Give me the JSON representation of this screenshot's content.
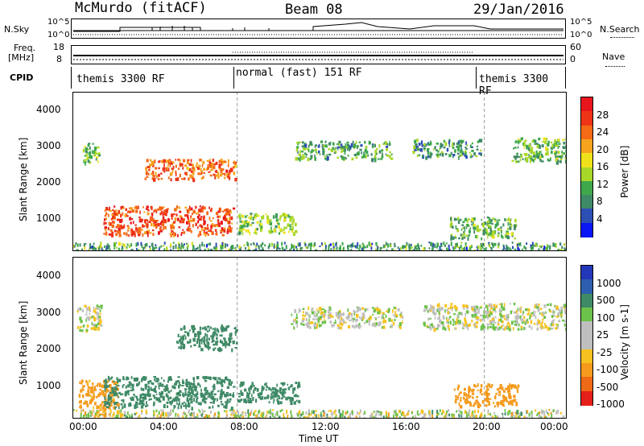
{
  "header": {
    "station": "McMurdo (fitACF)",
    "beam": "Beam 08",
    "date": "29/Jan/2016"
  },
  "strip_labels": {
    "nsky": "N.Sky",
    "nsearch": "N.Search",
    "freq": "Freq.",
    "freq_unit": "[MHz]",
    "cpid": "CPID",
    "nave": "Nave",
    "nsky_hi": "10^5",
    "nsky_lo": "10^0",
    "freq_hi": "18",
    "freq_lo": "8",
    "nave_hi": "60",
    "nave_lo": "0"
  },
  "cpid_segments": [
    {
      "label": "themis 3300 RF",
      "start_hour": 0,
      "end_hour": 8
    },
    {
      "label": "normal (fast) 151 RF",
      "start_hour": 8,
      "end_hour": 20
    },
    {
      "label": "themis 3300 RF",
      "start_hour": 20,
      "end_hour": 24
    }
  ],
  "power_panel": {
    "ylabel": "Slant Range [km]",
    "yticks": [
      "1000",
      "2000",
      "3000",
      "4000"
    ],
    "colorbar_label": "Power [dB]",
    "colorbar_ticks": [
      "4",
      "8",
      "12",
      "16",
      "20",
      "24",
      "28"
    ],
    "colors": [
      "#0b16f4",
      "#2c4fb4",
      "#3f8a66",
      "#3fa84c",
      "#a8d72a",
      "#f0e21a",
      "#f6a41e",
      "#f56a14",
      "#ee3417",
      "#e8161c"
    ]
  },
  "velocity_panel": {
    "ylabel": "Slant Range [km]",
    "yticks": [
      "1000",
      "2000",
      "3000",
      "4000"
    ],
    "colorbar_label": "Velocity [m s-1]",
    "colorbar_ticks": [
      "1000",
      "500",
      "100",
      "25",
      "-25",
      "-100",
      "-500",
      "-1000"
    ],
    "colors": [
      "#2437b8",
      "#2d5fae",
      "#3f8a66",
      "#6cc24a",
      "#bfbfbf",
      "#bfbfbf",
      "#f7c21f",
      "#f59a1d",
      "#ef6a16",
      "#e5201a"
    ]
  },
  "xaxis": {
    "label": "Time UT",
    "ticks": [
      "00:00",
      "04:00",
      "08:00",
      "12:00",
      "16:00",
      "20:00",
      "00:00"
    ]
  },
  "chart_data": [
    {
      "type": "heatmap",
      "xlabel": "Time UT",
      "ylabel": "Slant Range [km]",
      "colorbar": "Power [dB]",
      "xlim": [
        "00:00",
        "24:00"
      ],
      "ylim": [
        180,
        4600
      ],
      "clim": [
        0,
        32
      ],
      "echo_regions": [
        {
          "t0": 0.5,
          "t1": 1.3,
          "r0": 2650,
          "r1": 3200,
          "level": 12
        },
        {
          "t0": 1.5,
          "t1": 7.8,
          "r0": 650,
          "r1": 1450,
          "level": 26
        },
        {
          "t0": 3.5,
          "t1": 7.9,
          "r0": 2200,
          "r1": 2750,
          "level": 24
        },
        {
          "t0": 8.0,
          "t1": 10.8,
          "r0": 700,
          "r1": 1250,
          "level": 14
        },
        {
          "t0": 10.8,
          "t1": 15.5,
          "r0": 2750,
          "r1": 3250,
          "level": 10
        },
        {
          "t0": 16.5,
          "t1": 19.8,
          "r0": 2800,
          "r1": 3300,
          "level": 10
        },
        {
          "t0": 18.3,
          "t1": 21.5,
          "r0": 550,
          "r1": 1150,
          "level": 12
        },
        {
          "t0": 21.3,
          "t1": 24.0,
          "r0": 2650,
          "r1": 3350,
          "level": 12
        }
      ]
    },
    {
      "type": "heatmap",
      "xlabel": "Time UT",
      "ylabel": "Slant Range [km]",
      "colorbar": "Velocity [m s-1]",
      "xlim": [
        "00:00",
        "24:00"
      ],
      "ylim": [
        180,
        4600
      ],
      "clim": [
        -1000,
        1000
      ],
      "echo_regions": [
        {
          "t0": 0.2,
          "t1": 1.4,
          "r0": 2600,
          "r1": 3300,
          "velocity": 0
        },
        {
          "t0": 0.3,
          "t1": 2.2,
          "r0": 300,
          "r1": 1250,
          "velocity": -150
        },
        {
          "t0": 1.5,
          "t1": 7.8,
          "r0": 500,
          "r1": 1350,
          "velocity": 300
        },
        {
          "t0": 5.0,
          "t1": 8.0,
          "r0": 2100,
          "r1": 2750,
          "velocity": 300
        },
        {
          "t0": 8.0,
          "t1": 11.0,
          "r0": 650,
          "r1": 1200,
          "velocity": 300
        },
        {
          "t0": 10.6,
          "t1": 16.0,
          "r0": 2700,
          "r1": 3250,
          "velocity": 0
        },
        {
          "t0": 17.0,
          "t1": 24.0,
          "r0": 2650,
          "r1": 3350,
          "velocity": 0
        },
        {
          "t0": 18.5,
          "t1": 21.6,
          "r0": 550,
          "r1": 1150,
          "velocity": -300
        }
      ]
    }
  ]
}
